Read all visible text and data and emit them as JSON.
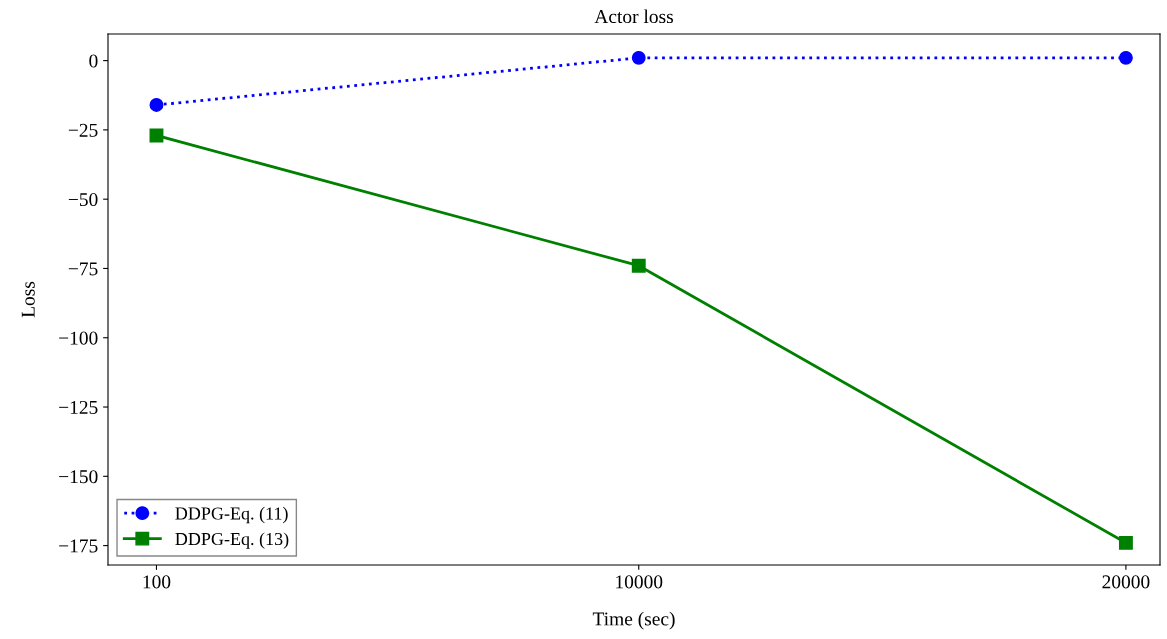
{
  "chart_data": {
    "type": "line",
    "title": "Actor loss",
    "xlabel": "Time (sec)",
    "ylabel": "Loss",
    "x": [
      100,
      10000,
      20000
    ],
    "series": [
      {
        "name": "DDPG-Eq. (11)",
        "color": "#0000ff",
        "values": [
          -16,
          1,
          1
        ],
        "marker": "circle",
        "line_style": "dotted"
      },
      {
        "name": "DDPG-Eq. (13)",
        "color": "#008000",
        "values": [
          -27,
          -74,
          -174
        ],
        "marker": "square",
        "line_style": "solid"
      }
    ],
    "xlim": [
      -895,
      20700
    ],
    "xticks": [
      100,
      10000,
      20000
    ],
    "ylim": [
      -182,
      9.6
    ],
    "yticks": [
      0,
      -25,
      -50,
      -75,
      -100,
      -125,
      -150,
      -175
    ],
    "grid": false,
    "legend": "bottom left"
  }
}
